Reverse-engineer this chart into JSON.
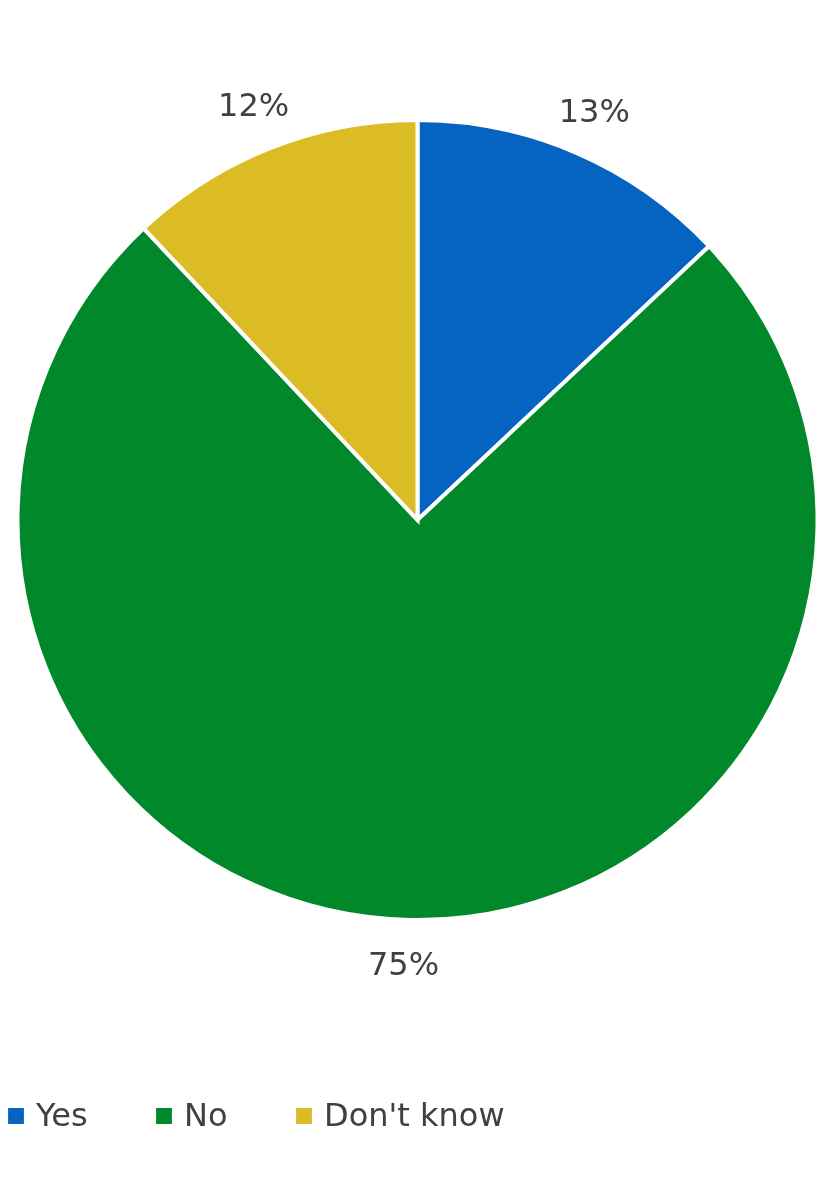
{
  "chart_data": {
    "type": "pie",
    "categories": [
      "Yes",
      "No",
      "Don't know"
    ],
    "values": [
      13,
      75,
      12
    ],
    "colors": [
      "#0563c1",
      "#00882b",
      "#dbbc25"
    ],
    "value_labels": [
      "13%",
      "75%",
      "12%"
    ],
    "legend": "bottom"
  }
}
